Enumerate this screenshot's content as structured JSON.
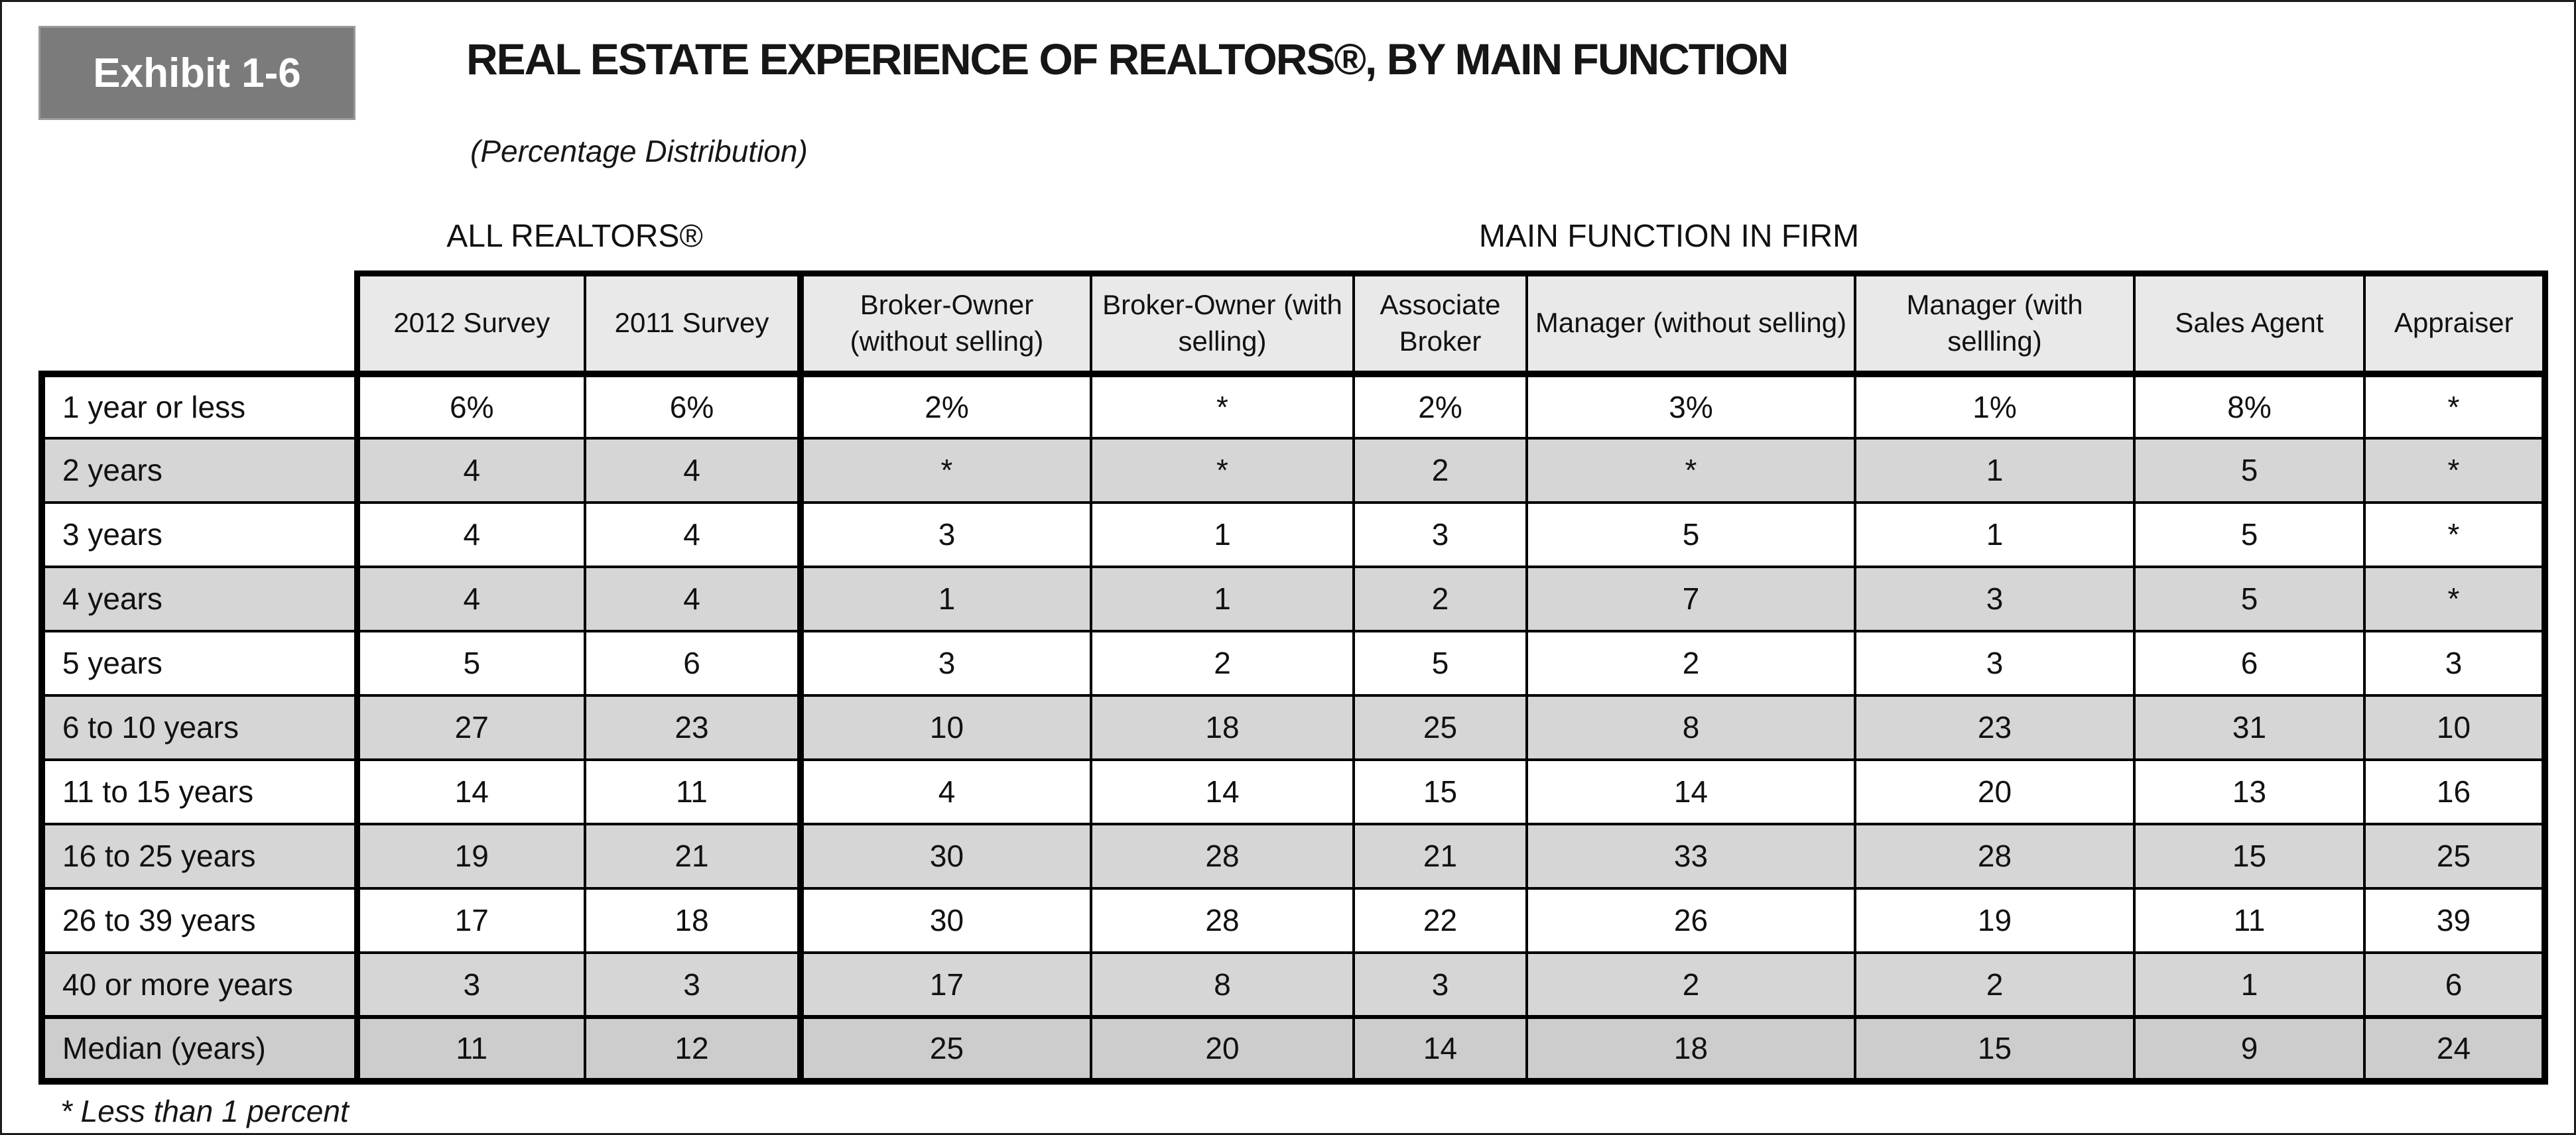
{
  "header": {
    "badge": "Exhibit 1-6",
    "title": "REAL ESTATE EXPERIENCE OF REALTORS®, BY MAIN FUNCTION",
    "subtitle": "(Percentage Distribution)"
  },
  "footnote": "* Less than 1 percent",
  "colors": {
    "badge_bg": "#7b7b7b",
    "badge_text": "#ffffff",
    "header_cell_bg": "#e9e9e9",
    "stripe_gray": "#d6d6d6",
    "median_row_gray": "#cdcdcd",
    "border": "#000000",
    "text": "#111111"
  },
  "chart_data": {
    "type": "table",
    "title": "REAL ESTATE EXPERIENCE OF REALTORS®, BY MAIN FUNCTION",
    "subtitle": "(Percentage Distribution)",
    "column_groups": [
      {
        "label": "ALL REALTORS®",
        "span": [
          0,
          1
        ]
      },
      {
        "label": "MAIN FUNCTION IN FIRM",
        "span": [
          2,
          8
        ]
      }
    ],
    "columns": [
      "2012 Survey",
      "2011 Survey",
      "Broker-Owner (without selling)",
      "Broker-Owner (with selling)",
      "Associate Broker",
      "Manager (without selling)",
      "Manager (with sellling)",
      "Sales Agent",
      "Appraiser"
    ],
    "row_labels": [
      "1 year or less",
      "2 years",
      "3 years",
      "4 years",
      "5 years",
      "6 to 10 years",
      "11 to 15 years",
      "16 to 25 years",
      "26 to 39 years",
      "40 or more years",
      "Median (years)"
    ],
    "rows": [
      [
        "6%",
        "6%",
        "2%",
        "*",
        "2%",
        "3%",
        "1%",
        "8%",
        "*"
      ],
      [
        "4",
        "4",
        "*",
        "*",
        "2",
        "*",
        "1",
        "5",
        "*"
      ],
      [
        "4",
        "4",
        "3",
        "1",
        "3",
        "5",
        "1",
        "5",
        "*"
      ],
      [
        "4",
        "4",
        "1",
        "1",
        "2",
        "7",
        "3",
        "5",
        "*"
      ],
      [
        "5",
        "6",
        "3",
        "2",
        "5",
        "2",
        "3",
        "6",
        "3"
      ],
      [
        "27",
        "23",
        "10",
        "18",
        "25",
        "8",
        "23",
        "31",
        "10"
      ],
      [
        "14",
        "11",
        "4",
        "14",
        "15",
        "14",
        "20",
        "13",
        "16"
      ],
      [
        "19",
        "21",
        "30",
        "28",
        "21",
        "33",
        "28",
        "15",
        "25"
      ],
      [
        "17",
        "18",
        "30",
        "28",
        "22",
        "26",
        "19",
        "11",
        "39"
      ],
      [
        "3",
        "3",
        "17",
        "8",
        "3",
        "2",
        "2",
        "1",
        "6"
      ],
      [
        "11",
        "12",
        "25",
        "20",
        "14",
        "18",
        "15",
        "9",
        "24"
      ]
    ],
    "values_unit": "percent of REALTORS®",
    "footnote": "* Less than 1 percent"
  }
}
